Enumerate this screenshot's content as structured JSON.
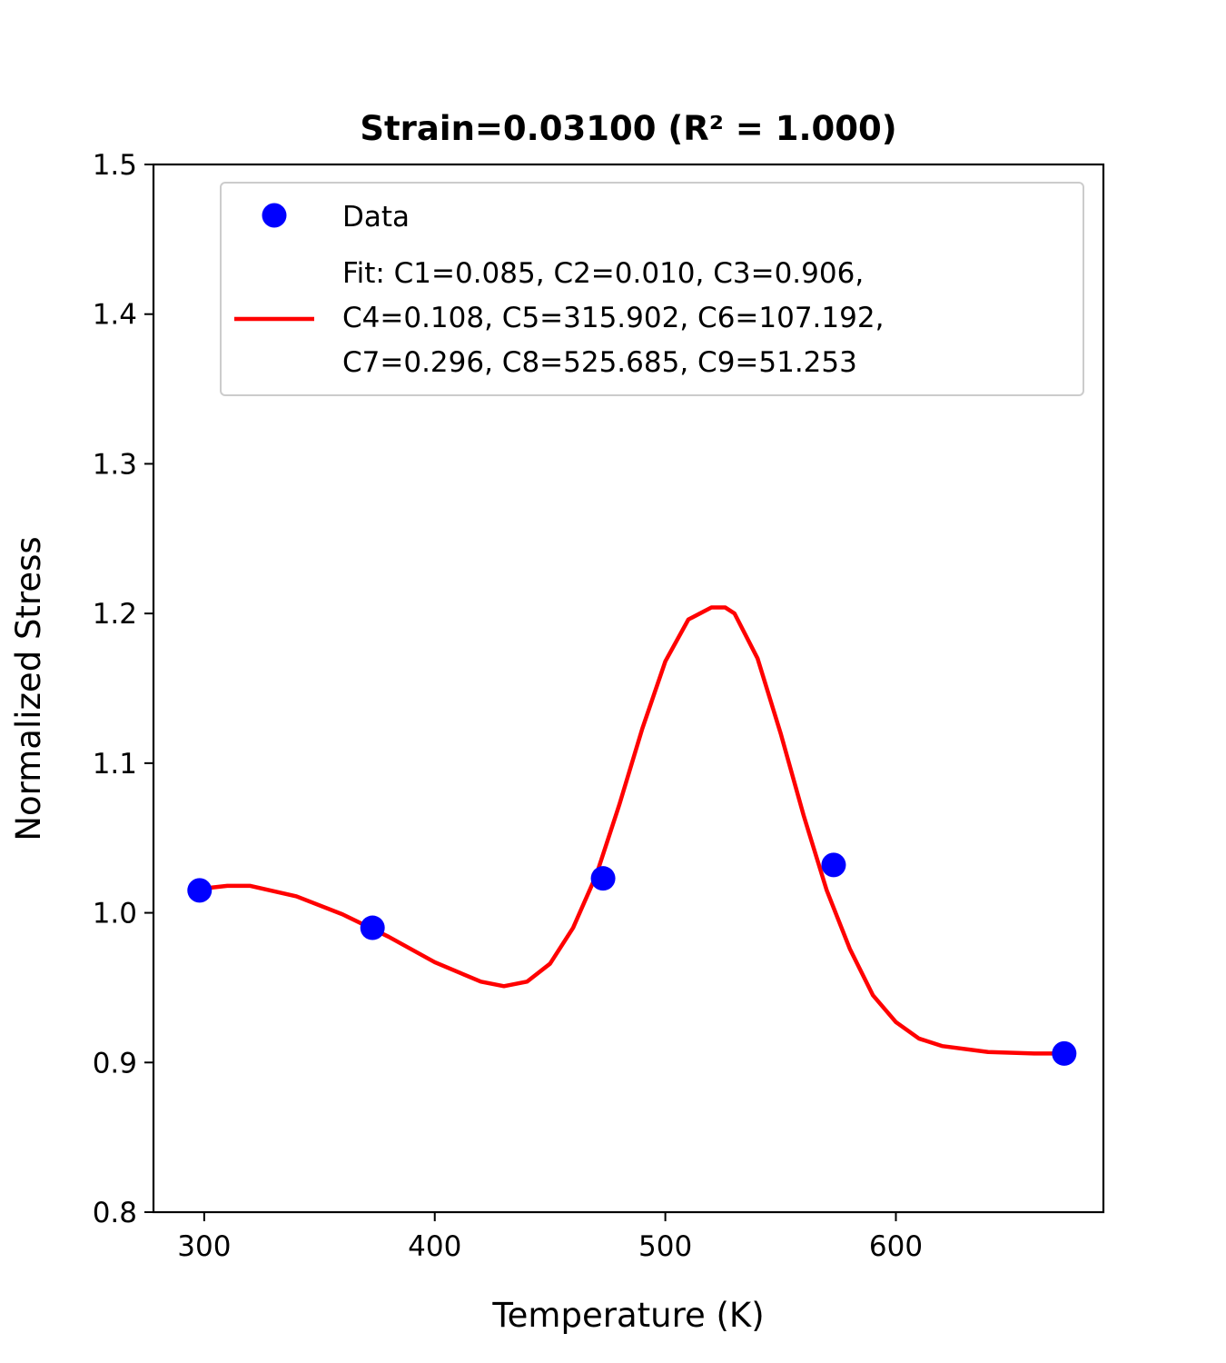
{
  "chart_data": {
    "type": "scatter",
    "title": "Strain=0.03100 (R² = 1.000)",
    "xlabel": "Temperature (K)",
    "ylabel": "Normalized Stress",
    "xlim": [
      278,
      690
    ],
    "ylim": [
      0.8,
      1.5
    ],
    "xticks": [
      300,
      400,
      500,
      600
    ],
    "yticks": [
      0.8,
      0.9,
      1.0,
      1.1,
      1.2,
      1.3,
      1.4,
      1.5
    ],
    "xtick_labels": [
      "300",
      "400",
      "500",
      "600"
    ],
    "ytick_labels": [
      "0.8",
      "0.9",
      "1.0",
      "1.1",
      "1.2",
      "1.3",
      "1.4",
      "1.5"
    ],
    "grid": false,
    "legend_position": "top",
    "series": [
      {
        "name": "Data",
        "kind": "scatter",
        "color": "#0000ff",
        "x": [
          298,
          373,
          473,
          573,
          673
        ],
        "y": [
          1.015,
          0.99,
          1.023,
          1.032,
          0.906
        ]
      },
      {
        "name": "Fit: C1=0.085, C2=0.010, C3=0.906,\nC4=0.108, C5=315.902, C6=107.192,\nC7=0.296, C8=525.685, C9=51.253",
        "legend_lines": [
          "Fit: C1=0.085, C2=0.010, C3=0.906,",
          "C4=0.108, C5=315.902, C6=107.192,",
          "C7=0.296, C8=525.685, C9=51.253"
        ],
        "kind": "line",
        "color": "#ff0000",
        "x": [
          298,
          310,
          320,
          340,
          360,
          380,
          400,
          420,
          430,
          440,
          450,
          460,
          470,
          480,
          490,
          500,
          510,
          520,
          526,
          530,
          540,
          550,
          560,
          570,
          580,
          590,
          600,
          610,
          620,
          640,
          660,
          673
        ],
        "y": [
          1.016,
          1.018,
          1.018,
          1.011,
          0.999,
          0.984,
          0.967,
          0.954,
          0.951,
          0.954,
          0.966,
          0.99,
          1.025,
          1.072,
          1.123,
          1.168,
          1.196,
          1.204,
          1.204,
          1.2,
          1.17,
          1.12,
          1.065,
          1.015,
          0.976,
          0.945,
          0.927,
          0.916,
          0.911,
          0.907,
          0.906,
          0.906
        ]
      }
    ]
  }
}
